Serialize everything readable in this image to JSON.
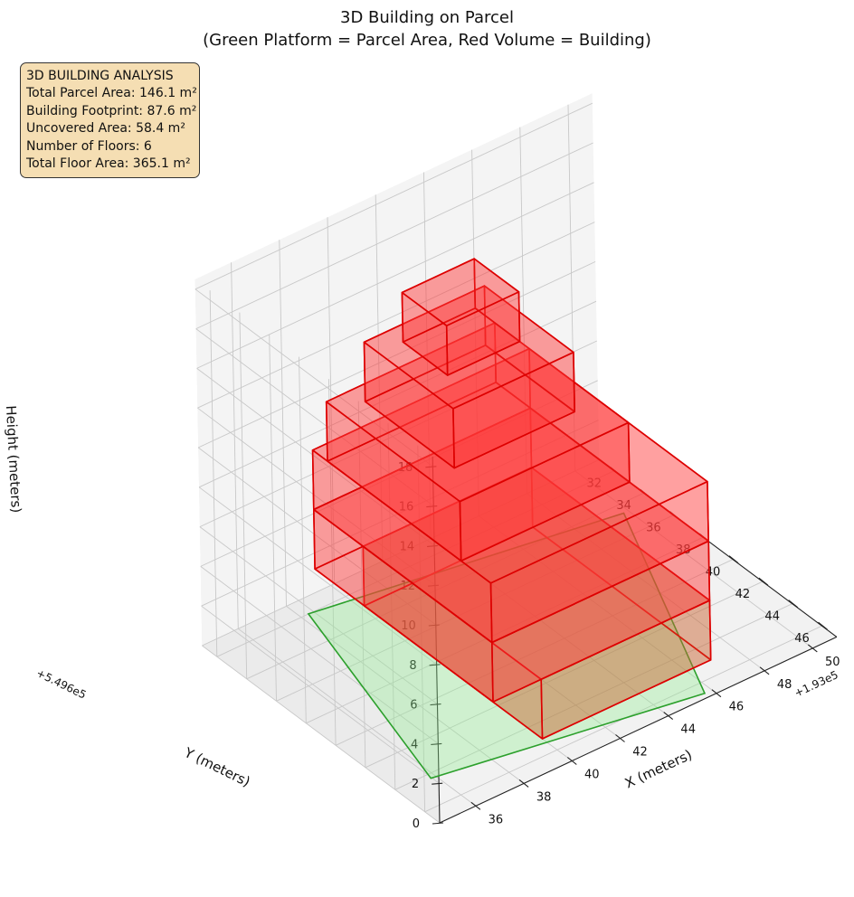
{
  "chart_data": {
    "type": "3d-blocks",
    "title": "3D Building on Parcel",
    "subtitle": "(Green Platform = Parcel Area, Red Volume = Building)",
    "xlabel": "X (meters)",
    "ylabel": "Y (meters)",
    "zlabel": "Height (meters)",
    "x_offset_label": "+1.93e5",
    "y_offset_label": "+5.496e5",
    "xlim": [
      34.5,
      51
    ],
    "ylim": [
      31,
      47
    ],
    "zlim": [
      0,
      18.5
    ],
    "x_ticks": [
      36,
      38,
      40,
      42,
      44,
      46,
      48,
      50
    ],
    "y_ticks": [
      32,
      34,
      36,
      38,
      40,
      42,
      44,
      46
    ],
    "z_ticks": [
      0,
      2,
      4,
      6,
      8,
      10,
      12,
      14,
      16,
      18
    ],
    "grid": true,
    "parcel": {
      "color": "#90ee90",
      "edge_color": "#2ca02c",
      "z": 0,
      "polygon": [
        [
          38.3,
          32.0
        ],
        [
          49.8,
          34.6
        ],
        [
          45.7,
          46.7
        ],
        [
          35.8,
          44.3
        ]
      ]
    },
    "building": {
      "color": "#ff3b3b",
      "edge_color": "#dd0000",
      "floor_height": 3,
      "floors": [
        {
          "x": [
            40,
            47
          ],
          "y": [
            33,
            45
          ],
          "z": [
            0,
            3
          ],
          "color": "#c86432"
        },
        {
          "x": [
            38,
            47
          ],
          "y": [
            33,
            45
          ],
          "z": [
            3,
            6
          ]
        },
        {
          "x": [
            38,
            47
          ],
          "y": [
            33,
            45
          ],
          "z": [
            6,
            9
          ]
        },
        {
          "x": [
            38,
            45
          ],
          "y": [
            34,
            43
          ],
          "z": [
            9,
            12
          ]
        },
        {
          "x": [
            39,
            44
          ],
          "y": [
            35,
            41
          ],
          "z": [
            12,
            15
          ]
        },
        {
          "x": [
            40,
            43
          ],
          "y": [
            36,
            39
          ],
          "z": [
            15,
            17.5
          ]
        }
      ]
    }
  },
  "info_box": {
    "heading": "3D BUILDING ANALYSIS",
    "lines": [
      "Total Parcel Area: 146.1 m²",
      "Building Footprint: 87.6 m²",
      "Uncovered Area: 58.4 m²",
      "Number of Floors: 6",
      "Total Floor Area: 365.1 m²"
    ],
    "background": "#f5deb3"
  }
}
